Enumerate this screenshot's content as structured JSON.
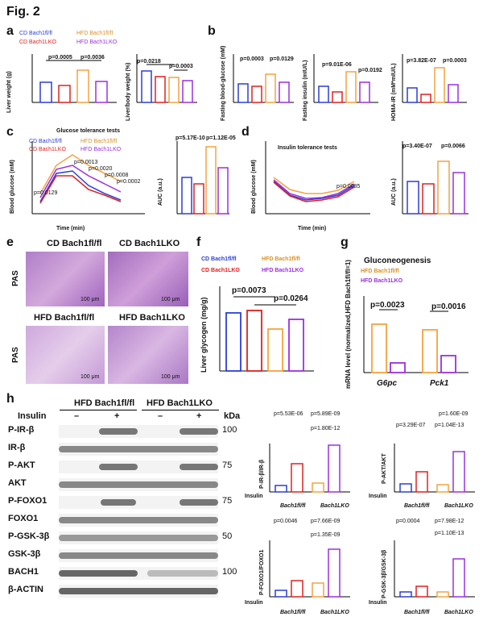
{
  "figure_title": "Fig. 2",
  "panels": {
    "a": {
      "letter": "a",
      "legend": [
        "CD Bach1fl/fl",
        "HFD Bach1fl/fl",
        "CD Bach1LKO",
        "HFD Bach1LKO"
      ],
      "left": {
        "ylabel": "Liver weight (g)",
        "p1": "p=0.0005",
        "p2": "p=0.0036"
      },
      "right": {
        "ylabel": "Liver/body weight (%)",
        "p1": "p=0.0218",
        "p2": "p=0.0003"
      }
    },
    "b": {
      "letter": "b",
      "glucose": {
        "ylabel": "Fasting blood-glucose (mM)",
        "p1": "p=0.0003",
        "p2": "p=0.0129"
      },
      "insulin": {
        "ylabel": "Fasting insulin (mIU/L)",
        "p1": "p=9.01E-06",
        "p2": "p=0.0192"
      },
      "homa": {
        "ylabel": "HOMA-IR (mM*mIU/L)",
        "p1": "p=3.82E-07",
        "p2": "p=0.0003"
      }
    },
    "c": {
      "letter": "c",
      "title": "Glucose tolerance tests",
      "legend": [
        "CD Bach1fl/fl",
        "HFD Bach1fl/fl",
        "CD Bach1LKO",
        "HFD Bach1LKO"
      ],
      "xlabel": "Time (min)",
      "ylabel": "Blood glucose (mM)",
      "p_values": [
        "p=0.0129",
        "p=0.0013",
        "p=0.0020",
        "p=0.0008",
        "p=0.0002"
      ],
      "auc": {
        "ylabel": "AUC (a.u.)",
        "p1": "p=5.17E-10",
        "p2": "p=1.12E-05"
      }
    },
    "d": {
      "letter": "d",
      "title": "Insulin tolerance tests",
      "xlabel": "Time (min)",
      "ylabel": "Blood glucose (mM)",
      "p_value": "p=0.0085",
      "auc": {
        "ylabel": "AUC (a.u.)",
        "p1": "p=3.40E-07",
        "p2": "p=0.0066"
      }
    },
    "e": {
      "letter": "e",
      "labels": [
        "CD Bach1fl/fl",
        "CD Bach1LKO",
        "HFD Bach1fl/fl",
        "HFD Bach1LKO"
      ],
      "row_label": "PAS",
      "scale": "100 μm"
    },
    "f": {
      "letter": "f",
      "legend": [
        "CD Bach1fl/fl",
        "HFD Bach1fl/fl",
        "CD Bach1LKO",
        "HFD Bach1LKO"
      ],
      "ylabel": "Liver glycogen (mg/g)",
      "p1": "p=0.0073",
      "p2": "p=0.0264"
    },
    "g": {
      "letter": "g",
      "title": "Gluconeogenesis",
      "legend": [
        "HFD Bach1fl/fl",
        "HFD Bach1LKO"
      ],
      "ylabel": "mRNA level (normalized,HFD Bach1fl/fl=1)",
      "categories": [
        "G6pc",
        "Pck1"
      ],
      "p1": "p=0.0023",
      "p2": "p=0.0016"
    },
    "h": {
      "letter": "h",
      "group1": "HFD Bach1fl/fl",
      "group2": "HFD Bach1LKO",
      "insulin_label": "Insulin",
      "kda": "kDa",
      "minus": "–",
      "plus": "+",
      "blots": [
        {
          "label": "P-IR-β",
          "kda": "100"
        },
        {
          "label": "IR-β",
          "kda": ""
        },
        {
          "label": "P-AKT",
          "kda": "75"
        },
        {
          "label": "AKT",
          "kda": ""
        },
        {
          "label": "P-FOXO1",
          "kda": "75"
        },
        {
          "label": "FOXO1",
          "kda": ""
        },
        {
          "label": "P-GSK-3β",
          "kda": "50"
        },
        {
          "label": "GSK-3β",
          "kda": ""
        },
        {
          "label": "BACH1",
          "kda": "100"
        },
        {
          "label": "β-ACTIN",
          "kda": ""
        }
      ],
      "quant": [
        {
          "ylabel": "P-IR-β/IR-β",
          "p_top": "p=5.53E-06",
          "p_mid": "p=5.89E-09",
          "p_bot": "p=1.80E-12"
        },
        {
          "ylabel": "P-AKT/AKT",
          "p_top": "p=1.60E-09",
          "p_mid": "p=3.29E-07",
          "p_bot": "p=1.04E-13"
        },
        {
          "ylabel": "P-FOXO1/FOXO1",
          "p_top": "p=0.0046",
          "p_mid": "p=7.66E-09",
          "p_bot": "p=1.35E-09"
        },
        {
          "ylabel": "P-GSK-3β/GSK-3β",
          "p_top": "p=0.0004",
          "p_mid": "p=7.98E-12",
          "p_bot": "p=1.10E-13"
        }
      ],
      "quant_xlabel1": "Bach1fl/fl",
      "quant_xlabel2": "Bach1LKO"
    }
  },
  "colors": {
    "blue": "#2b3fd6",
    "red": "#e02020",
    "orange": "#f4a340",
    "purple": "#9b30e0"
  }
}
